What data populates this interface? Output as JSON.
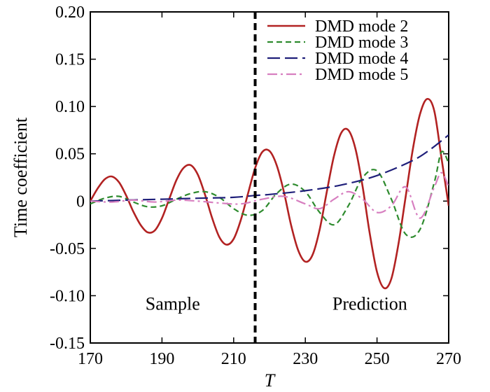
{
  "chart_data": {
    "type": "line",
    "xlabel": "T",
    "ylabel": "Time coefficient",
    "xlim": [
      170,
      270
    ],
    "ylim": [
      -0.15,
      0.2
    ],
    "xticks": [
      170,
      190,
      210,
      230,
      250,
      270
    ],
    "xtick_labels": [
      "170",
      "190",
      "210",
      "230",
      "250",
      "270"
    ],
    "yticks": [
      -0.15,
      -0.1,
      -0.05,
      0,
      0.05,
      0.1,
      0.15,
      0.2
    ],
    "ytick_labels": [
      "-0.15",
      "-0.10",
      "-0.05",
      "0",
      "0.05",
      "0.10",
      "0.15",
      "0.20"
    ],
    "divider_x": 216,
    "annotations": [
      {
        "text": "Sample",
        "x": 193,
        "y": -0.115
      },
      {
        "text": "Prediction",
        "x": 248,
        "y": -0.115
      }
    ],
    "legend_position": "top-right",
    "series": [
      {
        "name": "DMD mode 2",
        "color": "#b22222",
        "dash": "solid",
        "x": [
          170,
          172,
          174,
          176,
          178,
          180,
          182,
          184,
          186,
          188,
          190,
          192,
          194,
          196,
          198,
          200,
          202,
          204,
          206,
          208,
          210,
          212,
          214,
          216,
          218,
          220,
          222,
          224,
          226,
          228,
          230,
          232,
          234,
          236,
          238,
          240,
          242,
          244,
          246,
          248,
          250,
          252,
          254,
          256,
          258,
          260,
          262,
          264,
          266,
          268,
          270
        ],
        "y": [
          0.0,
          0.013,
          0.023,
          0.026,
          0.02,
          0.006,
          -0.011,
          -0.025,
          -0.033,
          -0.031,
          -0.018,
          0.002,
          0.022,
          0.035,
          0.038,
          0.028,
          0.007,
          -0.018,
          -0.038,
          -0.046,
          -0.04,
          -0.02,
          0.008,
          0.035,
          0.052,
          0.053,
          0.038,
          0.01,
          -0.025,
          -0.052,
          -0.064,
          -0.057,
          -0.03,
          0.01,
          0.048,
          0.072,
          0.075,
          0.055,
          0.015,
          -0.035,
          -0.075,
          -0.092,
          -0.082,
          -0.045,
          0.005,
          0.055,
          0.092,
          0.108,
          0.095,
          0.045,
          -0.005
        ]
      },
      {
        "name": "DMD mode 3",
        "color": "#2e8b2e",
        "dash": "dashed",
        "x": [
          170,
          174,
          178,
          182,
          186,
          190,
          194,
          198,
          202,
          206,
          210,
          214,
          218,
          222,
          226,
          230,
          234,
          238,
          242,
          246,
          250,
          254,
          258,
          262,
          266,
          268,
          270
        ],
        "y": [
          -0.003,
          0.003,
          0.005,
          -0.001,
          -0.006,
          -0.005,
          0.002,
          0.008,
          0.01,
          0.004,
          -0.008,
          -0.015,
          -0.01,
          0.008,
          0.018,
          0.01,
          -0.012,
          -0.025,
          -0.005,
          0.025,
          0.032,
          0.002,
          -0.035,
          -0.03,
          0.02,
          0.052,
          0.04
        ]
      },
      {
        "name": "DMD mode 4",
        "color": "#1f1f7a",
        "dash": "longdash",
        "x": [
          170,
          180,
          190,
          200,
          210,
          216,
          220,
          230,
          240,
          250,
          260,
          265,
          270
        ],
        "y": [
          0.0,
          0.001,
          0.002,
          0.003,
          0.004,
          0.006,
          0.007,
          0.011,
          0.017,
          0.027,
          0.043,
          0.055,
          0.07
        ]
      },
      {
        "name": "DMD mode 5",
        "color": "#d77fc0",
        "dash": "dashdot",
        "x": [
          170,
          176,
          182,
          188,
          194,
          200,
          206,
          212,
          218,
          224,
          230,
          234,
          238,
          242,
          246,
          250,
          254,
          258,
          262,
          266,
          268,
          270
        ],
        "y": [
          0.0,
          -0.001,
          0.001,
          -0.001,
          0.001,
          0.0,
          -0.002,
          -0.003,
          0.002,
          0.005,
          -0.003,
          -0.008,
          0.002,
          0.01,
          0.002,
          -0.012,
          -0.005,
          0.015,
          -0.018,
          0.015,
          0.03,
          0.015
        ]
      }
    ]
  }
}
